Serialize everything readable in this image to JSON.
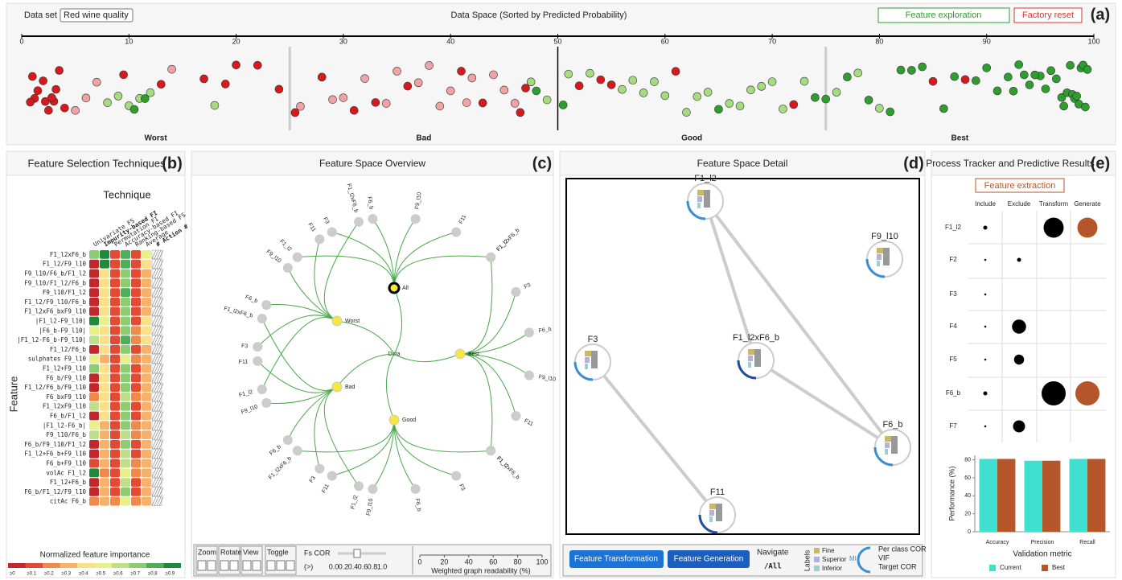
{
  "header": {
    "dataset_label": "Data set",
    "dataset_value": "Red wine quality",
    "title": "Data Space (Sorted by Predicted Probability)",
    "explore_button": "Feature exploration",
    "reset_button": "Factory reset",
    "panel_label": "(a)"
  },
  "data_space": {
    "xlim": [
      0,
      100
    ],
    "xticks": [
      0,
      10,
      20,
      30,
      40,
      50,
      60,
      70,
      80,
      90,
      100
    ],
    "regions": [
      "Worst",
      "Bad",
      "Good",
      "Best"
    ],
    "boundaries": [
      25,
      50,
      75
    ],
    "groups": [
      {
        "color": "#d7191c",
        "x": [
          1,
          1.5,
          2,
          2.5,
          3,
          3.5,
          4,
          1.2,
          2.2,
          3.2,
          0.8,
          2.8,
          9.5,
          13,
          17,
          19,
          20,
          22,
          24,
          25.5,
          28,
          31,
          33,
          36,
          41,
          43,
          46.5,
          47,
          52,
          54,
          55,
          61,
          72,
          85,
          88
        ]
      },
      {
        "color": "#f1a3a3",
        "x": [
          5,
          6,
          7,
          14,
          26,
          29,
          30,
          32,
          34,
          35,
          37,
          38,
          39,
          40,
          41.5,
          42,
          44,
          45,
          46
        ]
      },
      {
        "color": "#a6db7f",
        "x": [
          8,
          9,
          10,
          11,
          12,
          18,
          47.5,
          49,
          51,
          53,
          56,
          57,
          58,
          59,
          60,
          62,
          63,
          64,
          66,
          67,
          68,
          69,
          70,
          71,
          73,
          76,
          78,
          80
        ]
      },
      {
        "color": "#2e9e2e",
        "x": [
          10.5,
          11.5,
          48,
          50.5,
          65,
          74,
          75,
          77,
          79,
          81,
          82,
          83,
          84,
          86,
          87,
          89,
          90,
          91,
          92,
          93,
          94,
          95,
          96,
          96.5,
          97,
          97.2,
          97.5,
          97.8,
          98,
          98.2,
          98.4,
          98.6,
          98.8,
          99,
          99.2,
          99.4,
          95.5,
          94.5,
          93.5,
          92.5
        ]
      }
    ]
  },
  "selection": {
    "title": "Feature Selection Techniques",
    "panel_label": "(b)",
    "heading": "Technique",
    "y_label": "Feature",
    "columns": [
      "Univariate FS",
      "Impurity-based FI",
      "Permutation FI",
      "Accuracy-based FI",
      "Ranking-based FS",
      "Average",
      "# Action #"
    ],
    "rows": [
      "F1_l2xF6_b",
      "F1_l2/F9_l10",
      "F9_l10/F6_b/F1_l2",
      "F9_l10/F1_l2/F6_b",
      "F9_l10/F1_l2",
      "F1_l2/F9_l10/F6_b",
      "F1_l2xF6_bxF9_l10",
      "|F1_l2-F9_l10|",
      "|F6_b-F9_l10|",
      "|F1_l2-F6_b-F9_l10|",
      "F1_l2/F6_b",
      "sulphates F9_l10",
      "F1_l2+F9_l10",
      "F6_b/F9_l10",
      "F1_l2/F6_b/F9_l10",
      "F6_bxF9_l10",
      "F1_l2xF9_l10",
      "F6_b/F1_l2",
      "|F1_l2-F6_b|",
      "F9_l10/F6_b",
      "F6_b/F9_l10/F1_l2",
      "F1_l2+F6_b+F9_l10",
      "F6_b+F9_l10",
      "volAc F1_l2",
      "F1_l2+F6_b",
      "F6_b/F1_l2/F9_l10",
      "citAc F6_b"
    ],
    "values": [
      [
        0.7,
        0.9,
        0.1,
        0.8,
        0.1,
        0.5
      ],
      [
        0,
        0.9,
        0.1,
        0.8,
        0.1,
        0.4
      ],
      [
        0,
        0.4,
        0.1,
        0.7,
        0.1,
        0.3
      ],
      [
        0,
        0.4,
        0.1,
        0.7,
        0.1,
        0.3
      ],
      [
        0,
        0.4,
        0.1,
        0.8,
        0.1,
        0.3
      ],
      [
        0,
        0.4,
        0.1,
        0.7,
        0.1,
        0.3
      ],
      [
        0,
        0.4,
        0.1,
        0.7,
        0.1,
        0.3
      ],
      [
        0.9,
        0.5,
        0.1,
        0.7,
        0.1,
        0.4
      ],
      [
        0.5,
        0.4,
        0.1,
        0.7,
        0.2,
        0.4
      ],
      [
        0.6,
        0.4,
        0.1,
        0.8,
        0.2,
        0.4
      ],
      [
        0,
        0.4,
        0.1,
        0.7,
        0.1,
        0.3
      ],
      [
        0.5,
        0.3,
        0.1,
        0.5,
        0.2,
        0.3
      ],
      [
        0.7,
        0.4,
        0.1,
        0.7,
        0.1,
        0.3
      ],
      [
        0,
        0.4,
        0.1,
        0.7,
        0.1,
        0.3
      ],
      [
        0,
        0.4,
        0.1,
        0.7,
        0.1,
        0.3
      ],
      [
        0.2,
        0.4,
        0.1,
        0.6,
        0.2,
        0.3
      ],
      [
        0.6,
        0.4,
        0.1,
        0.7,
        0.1,
        0.3
      ],
      [
        0,
        0.4,
        0.1,
        0.7,
        0.1,
        0.3
      ],
      [
        0.5,
        0.3,
        0.1,
        0.7,
        0.2,
        0.3
      ],
      [
        0.6,
        0.3,
        0.1,
        0.6,
        0.2,
        0.3
      ],
      [
        0,
        0.3,
        0.1,
        0.7,
        0.1,
        0.3
      ],
      [
        0,
        0.3,
        0.1,
        0.6,
        0.1,
        0.3
      ],
      [
        0.1,
        0.3,
        0.1,
        0.6,
        0.2,
        0.3
      ],
      [
        0.9,
        0.2,
        0.1,
        0.5,
        0.2,
        0.3
      ],
      [
        0,
        0.3,
        0.1,
        0.6,
        0.1,
        0.3
      ],
      [
        0,
        0.3,
        0.1,
        0.7,
        0.1,
        0.3
      ],
      [
        0.2,
        0.3,
        0.2,
        0.5,
        0.2,
        0.3
      ]
    ],
    "legend_title": "Normalized feature importance",
    "legend_ticks": [
      {
        "value": 0,
        "label": "≥0"
      },
      {
        "value": 0.1,
        "label": "≥0.1"
      },
      {
        "value": 0.2,
        "label": "≥0.2"
      },
      {
        "value": 0.3,
        "label": "≥0.3"
      },
      {
        "value": 0.4,
        "label": "≥0.4"
      },
      {
        "value": 0.5,
        "label": "≥0.5"
      },
      {
        "value": 0.6,
        "label": "≥0.6"
      },
      {
        "value": 0.7,
        "label": "≥0.7"
      },
      {
        "value": 0.8,
        "label": "≥0.8"
      },
      {
        "value": 0.9,
        "label": "≥0.9"
      }
    ]
  },
  "overview": {
    "title": "Feature Space Overview",
    "panel_label": "(c)",
    "root": "Data",
    "groups": [
      {
        "name": "All",
        "children": [
          "F1_l2",
          "F3",
          "F6_b",
          "F9_l10",
          "F11",
          "F1_l2xF6_b"
        ]
      },
      {
        "name": "Best",
        "children": [
          "F1_l2",
          "F3",
          "F6_b",
          "F9_l10",
          "F11",
          "F1_l2xF6_b"
        ]
      },
      {
        "name": "Good",
        "children": [
          "F1_l2",
          "F3",
          "F6_b",
          "F9_l10",
          "F11",
          "F1_l2xF6_b"
        ]
      },
      {
        "name": "Bad",
        "children": [
          "F1_l2",
          "F3",
          "F6_b",
          "F9_l10",
          "F11",
          "F1_l2xF6_b"
        ]
      },
      {
        "name": "Worst",
        "children": [
          "F1_l2",
          "F3",
          "F6_b",
          "F9_l10",
          "F11",
          "F1_l2xF6_b"
        ]
      }
    ],
    "controls": [
      "Zoom",
      "Rotate",
      "View",
      "Toggle"
    ],
    "cor_label": "Fs COR",
    "cor_op": "(>)",
    "cor_ticks": [
      {
        "value": 0,
        "label": "0.0"
      },
      {
        "value": 0.2,
        "label": "0.2"
      },
      {
        "value": 0.4,
        "label": "0.4"
      },
      {
        "value": 0.6,
        "label": "0.6"
      },
      {
        "value": 0.8,
        "label": "0.8"
      },
      {
        "value": 1,
        "label": "1.0"
      }
    ],
    "readability_label": "Weighted graph readability (%)",
    "readability_ticks": [
      0,
      20,
      40,
      60,
      80,
      100
    ]
  },
  "detail": {
    "title": "Feature Space Detail",
    "panel_label": "(d)",
    "nodes": [
      "F1_l2",
      "F9_l10",
      "F3",
      "F1_l2xF6_b",
      "F6_b",
      "F11"
    ],
    "edges": [
      [
        0,
        4
      ],
      [
        0,
        3
      ],
      [
        2,
        5
      ],
      [
        3,
        4
      ]
    ],
    "transform_button": "Feature Transformation",
    "generate_button": "Feature Generation",
    "navigate_label": "Navigate",
    "navigate_value": "/All",
    "labels_label": "Labels",
    "legend": [
      {
        "name": "Fine",
        "color": "#c8b96a"
      },
      {
        "name": "Superior",
        "color": "#b3b3d9"
      },
      {
        "name": "Inferior",
        "color": "#9fcfcf"
      }
    ],
    "mi_label": "MI",
    "metrics": [
      "Per class COR",
      "VIF",
      "Target COR"
    ]
  },
  "tracker": {
    "title": "Process Tracker and Predictive Results",
    "panel_label": "(e)",
    "button": "Feature extraction",
    "columns": [
      "Include",
      "Exclude",
      "Transform",
      "Generate"
    ],
    "rows": [
      "F1_l2",
      "F2",
      "F3",
      "F4",
      "F5",
      "F6_b",
      "F7"
    ],
    "sizes": [
      [
        1,
        null,
        5,
        5
      ],
      [
        0.5,
        1,
        null,
        null
      ],
      [
        0.5,
        null,
        null,
        null
      ],
      [
        0.5,
        3.5,
        null,
        null
      ],
      [
        0.5,
        2.5,
        null,
        null
      ],
      [
        1,
        null,
        6,
        6
      ],
      [
        0.5,
        3,
        null,
        null
      ]
    ],
    "colors": [
      "#000000",
      "#000000",
      "#000000",
      "#b5562a"
    ]
  },
  "chart_data": {
    "type": "bar",
    "y_label": "Performance (%)",
    "x_label": "Validation metric",
    "categories": [
      "Accuracy",
      "Precision",
      "Recall"
    ],
    "series": [
      {
        "name": "Current",
        "color": "#40e0d0",
        "values": [
          81,
          79,
          81
        ]
      },
      {
        "name": "Best",
        "color": "#b5562a",
        "values": [
          81,
          79,
          81
        ]
      }
    ],
    "ylim": [
      0,
      85
    ],
    "yticks": [
      0,
      20,
      40,
      60,
      80
    ]
  }
}
